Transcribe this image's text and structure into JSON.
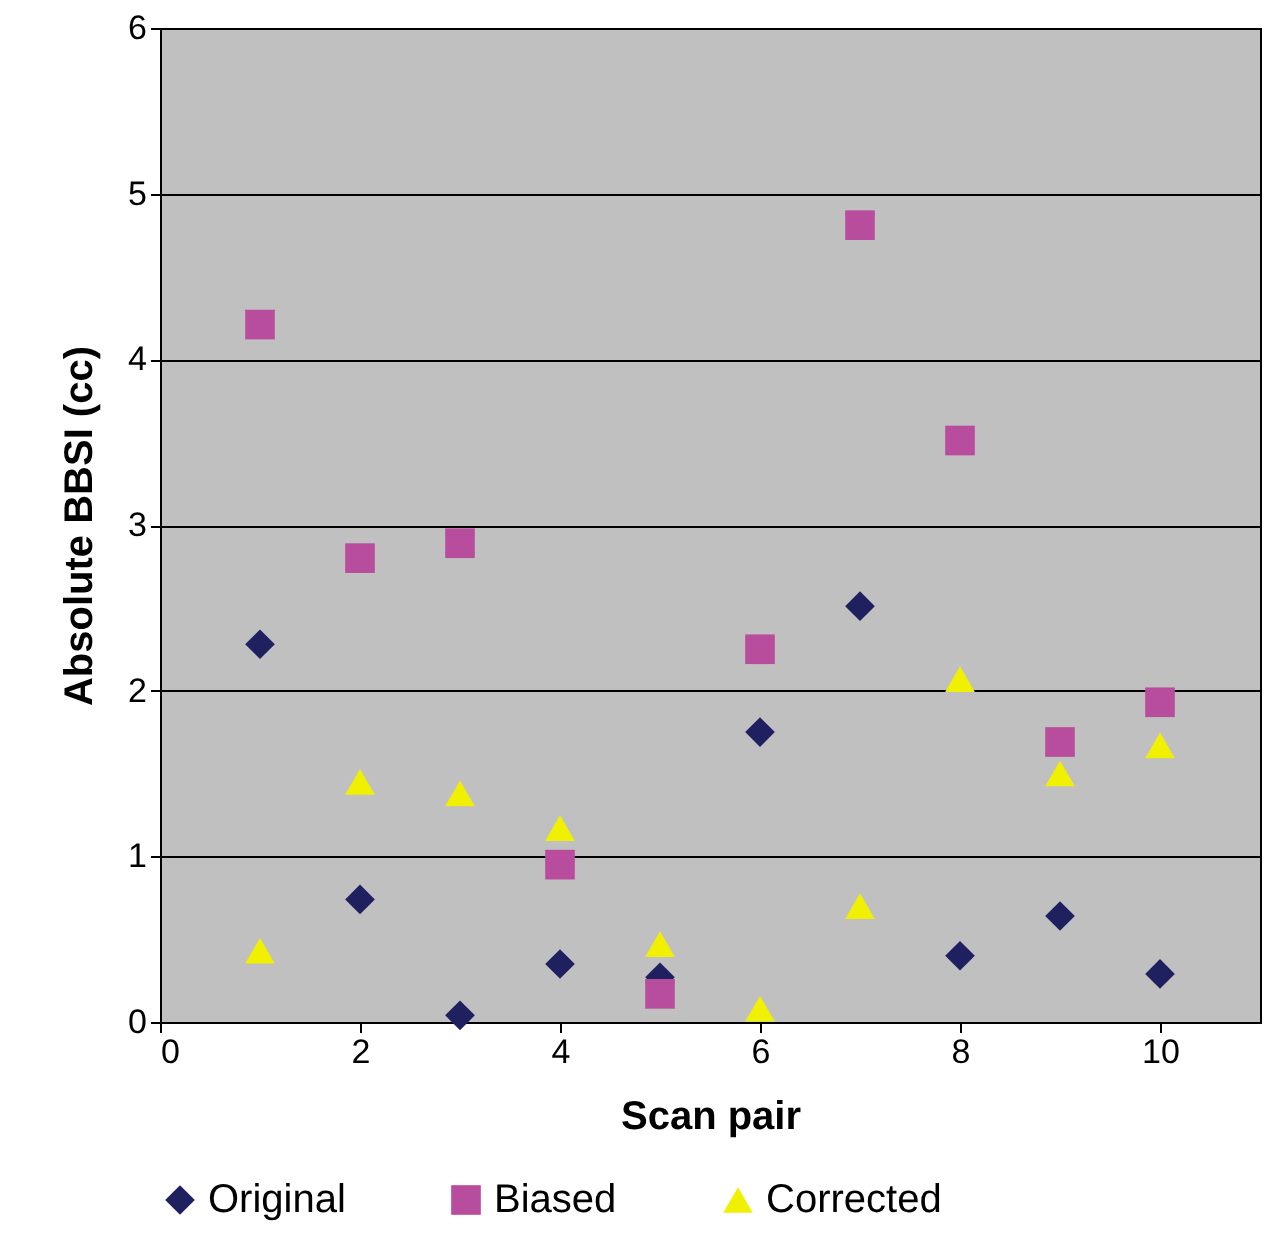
{
  "chart_data": {
    "type": "scatter",
    "xlabel": "Scan pair",
    "ylabel": "Absolute BBSI (cc)",
    "x": [
      1,
      2,
      3,
      4,
      5,
      6,
      7,
      8,
      9,
      10
    ],
    "series": [
      {
        "name": "Original",
        "color": "#1f2060",
        "marker": "diamond",
        "values": [
          2.28,
          0.74,
          0.04,
          0.35,
          0.27,
          1.75,
          2.51,
          0.4,
          0.64,
          0.29
        ]
      },
      {
        "name": "Biased",
        "color": "#b84d9e",
        "marker": "square",
        "values": [
          4.21,
          2.8,
          2.89,
          0.95,
          0.17,
          2.25,
          4.81,
          3.51,
          1.69,
          1.93
        ]
      },
      {
        "name": "Corrected",
        "color": "#f0f000",
        "marker": "triangle",
        "values": [
          0.43,
          1.45,
          1.38,
          1.17,
          0.47,
          0.08,
          0.7,
          2.07,
          1.5,
          1.67
        ]
      }
    ],
    "xlim": [
      0,
      11
    ],
    "xticks": [
      0,
      2,
      4,
      6,
      8,
      10
    ],
    "ylim": [
      0,
      6
    ],
    "yticks": [
      0,
      1,
      2,
      3,
      4,
      5,
      6
    ],
    "grid": "y",
    "legend": "bottom"
  }
}
